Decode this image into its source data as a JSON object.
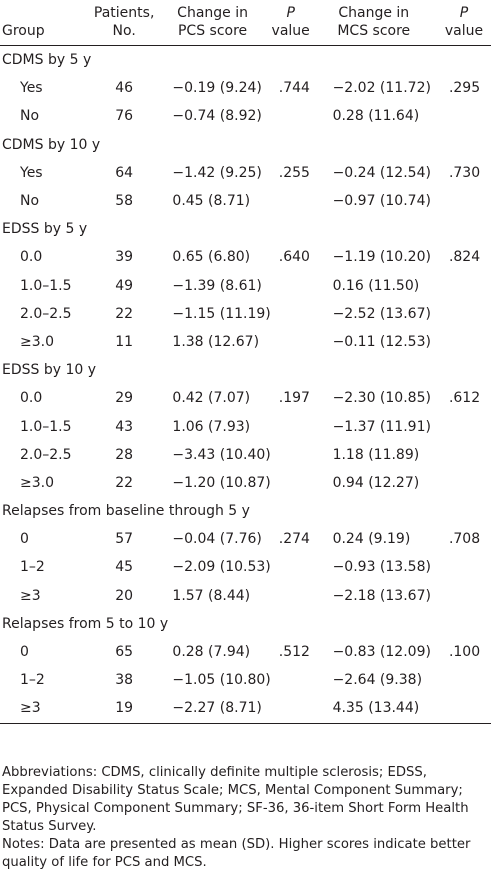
{
  "table": {
    "header": [
      [
        "Group"
      ],
      [
        "Patients,",
        "No."
      ],
      [
        "Change in",
        "PCS score"
      ],
      [
        "P",
        "value"
      ],
      [
        "Change in",
        "MCS score"
      ],
      [
        "P",
        "value"
      ]
    ],
    "sections": [
      {
        "title": "CDMS by 5 y",
        "rows": [
          [
            "Yes",
            "46",
            "−0.19 (9.24)",
            ".744",
            "−2.02 (11.72)",
            ".295"
          ],
          [
            "No",
            "76",
            "−0.74 (8.92)",
            "",
            "0.28 (11.64)",
            ""
          ]
        ]
      },
      {
        "title": "CDMS by 10 y",
        "rows": [
          [
            "Yes",
            "64",
            "−1.42 (9.25)",
            ".255",
            "−0.24 (12.54)",
            ".730"
          ],
          [
            "No",
            "58",
            "0.45 (8.71)",
            "",
            "−0.97 (10.74)",
            ""
          ]
        ]
      },
      {
        "title": "EDSS by 5 y",
        "rows": [
          [
            "0.0",
            "39",
            "0.65 (6.80)",
            ".640",
            "−1.19 (10.20)",
            ".824"
          ],
          [
            "1.0–1.5",
            "49",
            "−1.39 (8.61)",
            "",
            "0.16 (11.50)",
            ""
          ],
          [
            "2.0–2.5",
            "22",
            "−1.15 (11.19)",
            "",
            "−2.52 (13.67)",
            ""
          ],
          [
            "≥3.0",
            "11",
            "1.38 (12.67)",
            "",
            "−0.11 (12.53)",
            ""
          ]
        ]
      },
      {
        "title": "EDSS by 10 y",
        "rows": [
          [
            "0.0",
            "29",
            "0.42 (7.07)",
            ".197",
            "−2.30 (10.85)",
            ".612"
          ],
          [
            "1.0–1.5",
            "43",
            "1.06 (7.93)",
            "",
            "−1.37 (11.91)",
            ""
          ],
          [
            "2.0–2.5",
            "28",
            "−3.43 (10.40)",
            "",
            "1.18 (11.89)",
            ""
          ],
          [
            "≥3.0",
            "22",
            "−1.20 (10.87)",
            "",
            "0.94 (12.27)",
            ""
          ]
        ]
      },
      {
        "title": "Relapses from baseline through 5 y",
        "rows": [
          [
            "0",
            "57",
            "−0.04 (7.76)",
            ".274",
            "0.24 (9.19)",
            ".708"
          ],
          [
            "1–2",
            "45",
            "−2.09 (10.53)",
            "",
            "−0.93 (13.58)",
            ""
          ],
          [
            "≥3",
            "20",
            "1.57 (8.44)",
            "",
            "−2.18 (13.67)",
            ""
          ]
        ]
      },
      {
        "title": "Relapses from 5 to 10 y",
        "rows": [
          [
            "0",
            "65",
            "0.28 (7.94)",
            ".512",
            "−0.83 (12.09)",
            ".100"
          ],
          [
            "1–2",
            "38",
            "−1.05 (10.80)",
            "",
            "−2.64 (9.38)",
            ""
          ],
          [
            "≥3",
            "19",
            "−2.27 (8.71)",
            "",
            "4.35 (13.44)",
            ""
          ]
        ]
      }
    ],
    "footnotes": [
      "Abbreviations: CDMS, clinically definite multiple sclerosis; EDSS, Expanded Disability Status Scale; MCS, Mental Component Summary; PCS, Physical Component Summary; SF-36, 36-item Short Form Health Status Survey.",
      "Notes: Data are presented as mean (SD). Higher scores indicate better quality of life for PCS and MCS."
    ]
  }
}
